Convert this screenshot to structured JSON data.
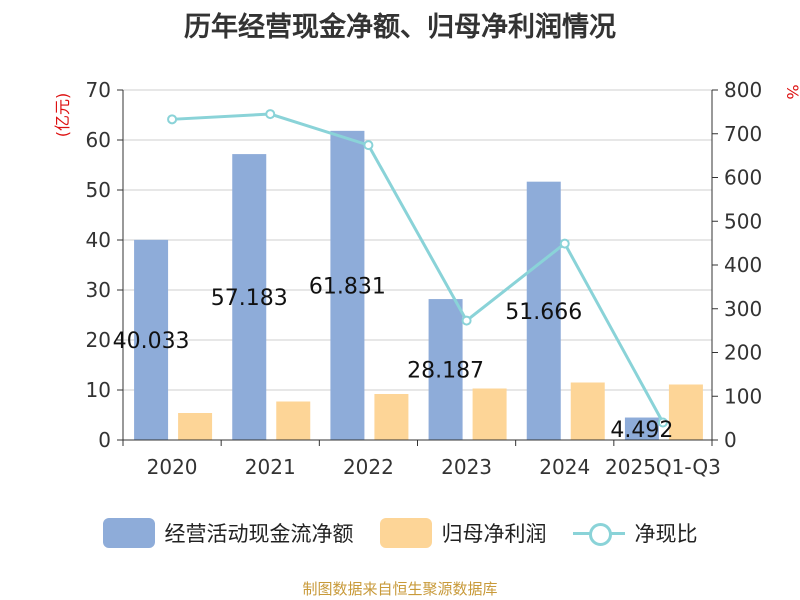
{
  "chart_data": {
    "type": "bar",
    "title": "历年经营现金净额、归母净利润情况",
    "categories": [
      "2020",
      "2021",
      "2022",
      "2023",
      "2024",
      "2025Q1-Q3"
    ],
    "y_left_label": "(亿元)",
    "y_left_range": [
      0,
      70
    ],
    "y_left_ticks": [
      "0",
      "10",
      "20",
      "30",
      "40",
      "50",
      "60",
      "70"
    ],
    "y_right_label": "%",
    "y_right_range": [
      0,
      800
    ],
    "y_right_ticks": [
      "0",
      "100",
      "200",
      "300",
      "400",
      "500",
      "600",
      "700",
      "800"
    ],
    "grid": true,
    "legend_position": "bottom",
    "series": [
      {
        "name": "经营活动现金流净额",
        "kind": "bar",
        "axis": "left",
        "color": "#8eacd9",
        "values": [
          40.033,
          57.183,
          61.831,
          28.187,
          51.666,
          4.492
        ],
        "labels": [
          "40.033",
          "57.183",
          "61.831",
          "28.187",
          "51.666",
          "4.492"
        ]
      },
      {
        "name": "归母净利润",
        "kind": "bar",
        "axis": "left",
        "color": "#fdd597",
        "values": [
          5.4,
          7.7,
          9.2,
          10.3,
          11.5,
          11.1
        ]
      },
      {
        "name": "净现比",
        "kind": "line",
        "axis": "right",
        "color": "#8ad3d8",
        "values": [
          733,
          745,
          674,
          273,
          449,
          40
        ]
      }
    ],
    "source": "制图数据来自恒生聚源数据库"
  }
}
